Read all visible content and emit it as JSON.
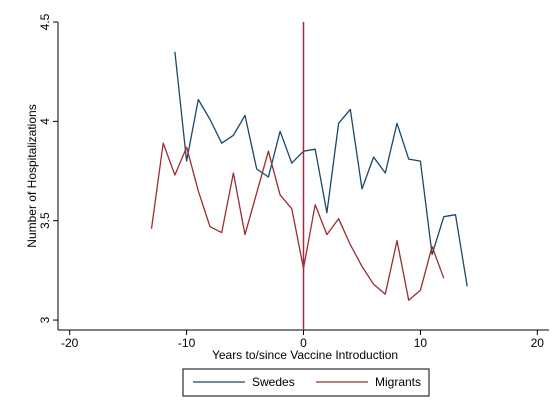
{
  "chart_data": {
    "type": "line",
    "xlabel": "Years to/since Vaccine Introduction",
    "ylabel": "Number of Hospitalizations",
    "xlim": [
      -21,
      21
    ],
    "ylim": [
      2.95,
      4.5
    ],
    "x_ticks": [
      -20,
      -10,
      0,
      10,
      20
    ],
    "x_tick_labels": [
      "-20",
      "-10",
      "0",
      "10",
      "20"
    ],
    "y_ticks": [
      3,
      3.5,
      4,
      4.5
    ],
    "y_tick_labels": [
      "3",
      "3.5",
      "4",
      "4.5"
    ],
    "grid": false,
    "legend_position": "bottom",
    "reference_line": {
      "x": 0,
      "color": "#9b2d45"
    },
    "series": [
      {
        "name": "Swedes",
        "color": "#1a476f",
        "x": [
          -11,
          -10,
          -9,
          -8,
          -7,
          -6,
          -5,
          -4,
          -3,
          -2,
          -1,
          0,
          1,
          2,
          3,
          4,
          5,
          6,
          7,
          8,
          9,
          10,
          11,
          12,
          13,
          14
        ],
        "y": [
          4.35,
          3.8,
          4.11,
          4.01,
          3.89,
          3.93,
          4.03,
          3.76,
          3.72,
          3.95,
          3.79,
          3.85,
          3.86,
          3.54,
          3.99,
          4.06,
          3.66,
          3.82,
          3.74,
          3.99,
          3.81,
          3.8,
          3.33,
          3.52,
          3.53,
          3.17
        ]
      },
      {
        "name": "Migrants",
        "color": "#9b2d2d",
        "x": [
          -13,
          -12,
          -11,
          -10,
          -9,
          -8,
          -7,
          -6,
          -5,
          -4,
          -3,
          -2,
          -1,
          0,
          1,
          2,
          3,
          4,
          5,
          6,
          7,
          8,
          9,
          10,
          11,
          12
        ],
        "y": [
          3.46,
          3.89,
          3.73,
          3.87,
          3.65,
          3.47,
          3.44,
          3.74,
          3.43,
          3.64,
          3.85,
          3.63,
          3.56,
          3.26,
          3.58,
          3.43,
          3.51,
          3.38,
          3.27,
          3.18,
          3.13,
          3.4,
          3.1,
          3.15,
          3.37,
          3.21
        ]
      }
    ]
  }
}
